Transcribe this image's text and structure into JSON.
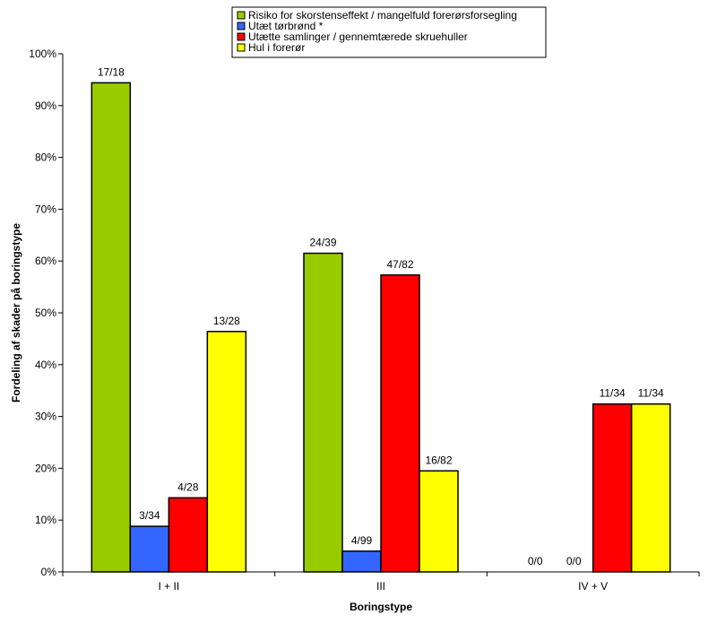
{
  "chart_data": {
    "type": "bar",
    "categories": [
      "I + II",
      "III",
      "IV + V"
    ],
    "series": [
      {
        "name": "Risiko for skorstenseffekt / mangelfuld forerørsforsegling",
        "color": "#99cc00",
        "values": [
          94.4,
          61.5,
          0
        ],
        "labels": [
          "17/18",
          "24/39",
          "0/0"
        ]
      },
      {
        "name": "Utæt tørbrønd *",
        "color": "#3366ff",
        "values": [
          8.8,
          4.0,
          0
        ],
        "labels": [
          "3/34",
          "4/99",
          "0/0"
        ]
      },
      {
        "name": "Utætte samlinger / gennemtærede skruehuller",
        "color": "#ff0000",
        "values": [
          14.3,
          57.3,
          32.4
        ],
        "labels": [
          "4/28",
          "47/82",
          "11/34"
        ]
      },
      {
        "name": "Hul i forerør",
        "color": "#ffff00",
        "values": [
          46.4,
          19.5,
          32.4
        ],
        "labels": [
          "13/28",
          "16/82",
          "11/34"
        ]
      }
    ],
    "xlabel": "Boringstype",
    "ylabel": "Fordeling af skader på boringstype",
    "ylim": [
      0,
      100
    ],
    "yticks": [
      "0%",
      "10%",
      "20%",
      "30%",
      "40%",
      "50%",
      "60%",
      "70%",
      "80%",
      "90%",
      "100%"
    ],
    "grid": false,
    "legend_position": "top"
  }
}
